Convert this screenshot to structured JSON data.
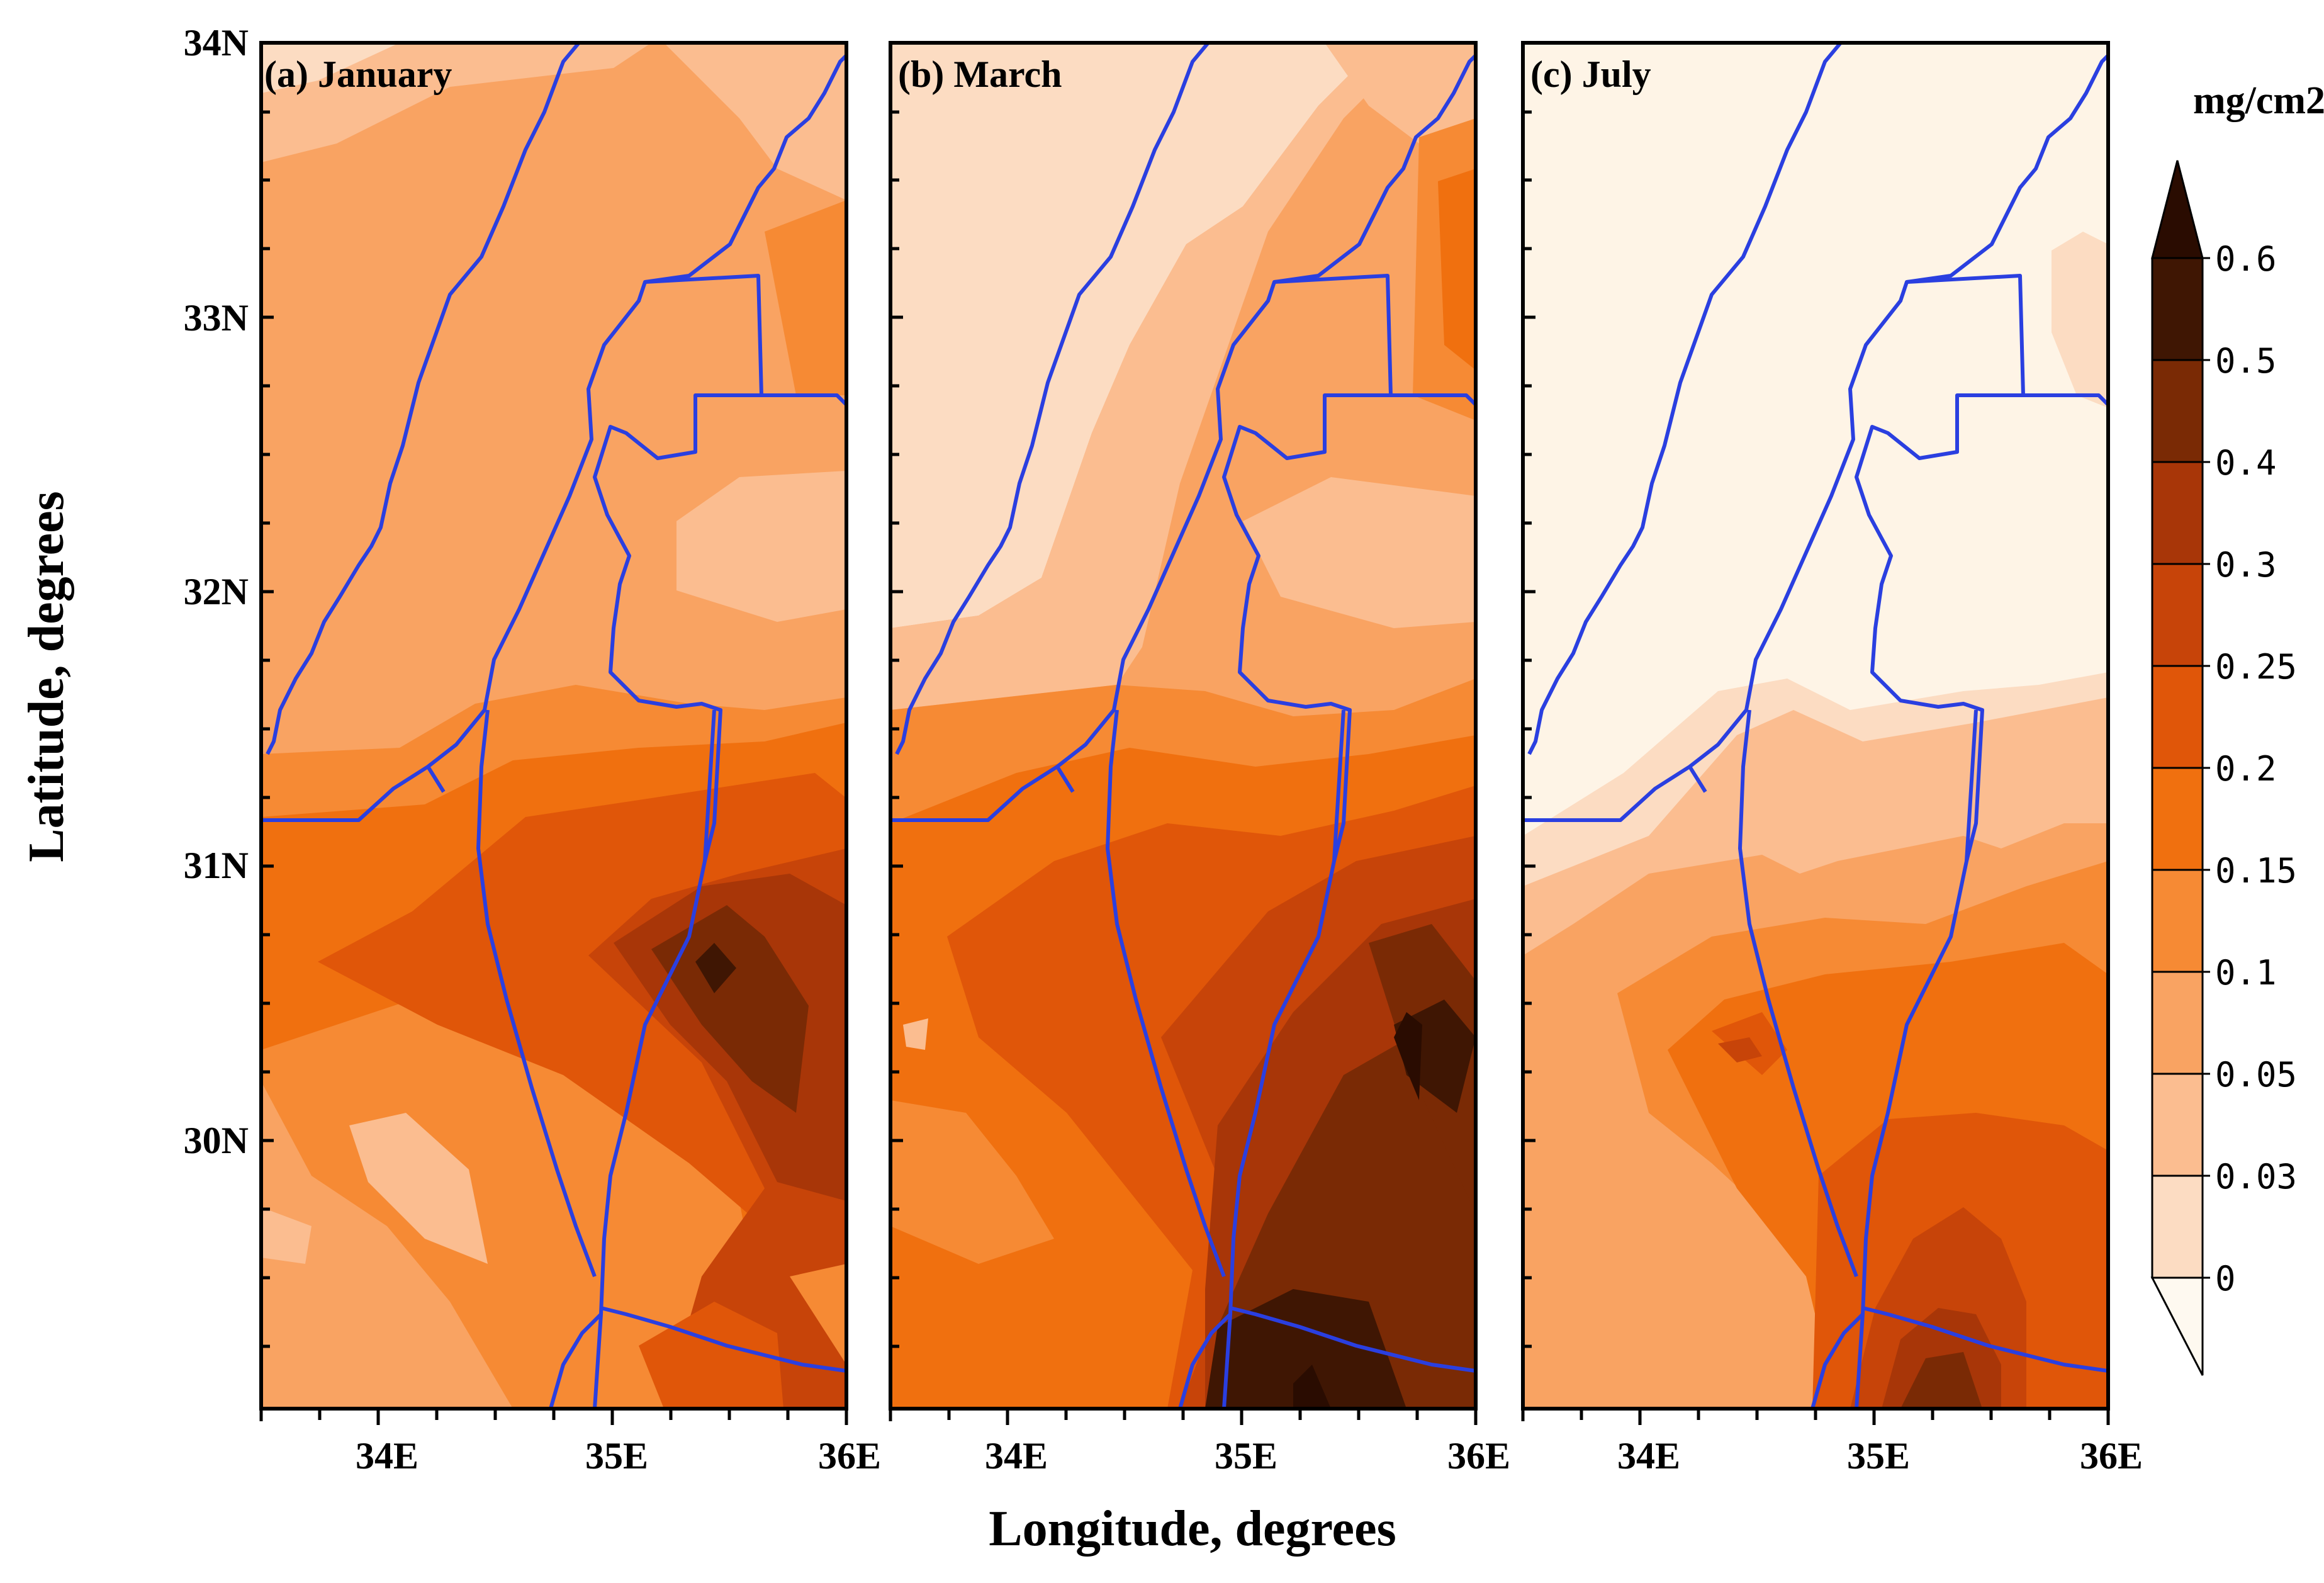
{
  "figure": {
    "panels": [
      {
        "id": "a",
        "title": "(a) January"
      },
      {
        "id": "b",
        "title": "(b) March"
      },
      {
        "id": "c",
        "title": "(c) July"
      }
    ],
    "x_axis": {
      "label": "Longitude,  degrees",
      "ticks": [
        "34E",
        "35E",
        "36E"
      ]
    },
    "y_axis": {
      "label": "Latitude,  degrees",
      "ticks": [
        "34N",
        "33N",
        "32N",
        "31N",
        "30N"
      ]
    },
    "colorbar": {
      "unit": "mg/cm2",
      "levels": [
        "0.6",
        "0.5",
        "0.4",
        "0.3",
        "0.25",
        "0.2",
        "0.15",
        "0.1",
        "0.05",
        "0.03",
        "0"
      ],
      "colors": [
        "#fef4e6",
        "#fcdcc2",
        "#fbbd90",
        "#f9a362",
        "#f68a34",
        "#f0700f",
        "#e05609",
        "#c74409",
        "#a83608",
        "#7a2a05",
        "#3f1603",
        "#2a0c01"
      ]
    },
    "boundary_color": "#2a3fe0"
  }
}
